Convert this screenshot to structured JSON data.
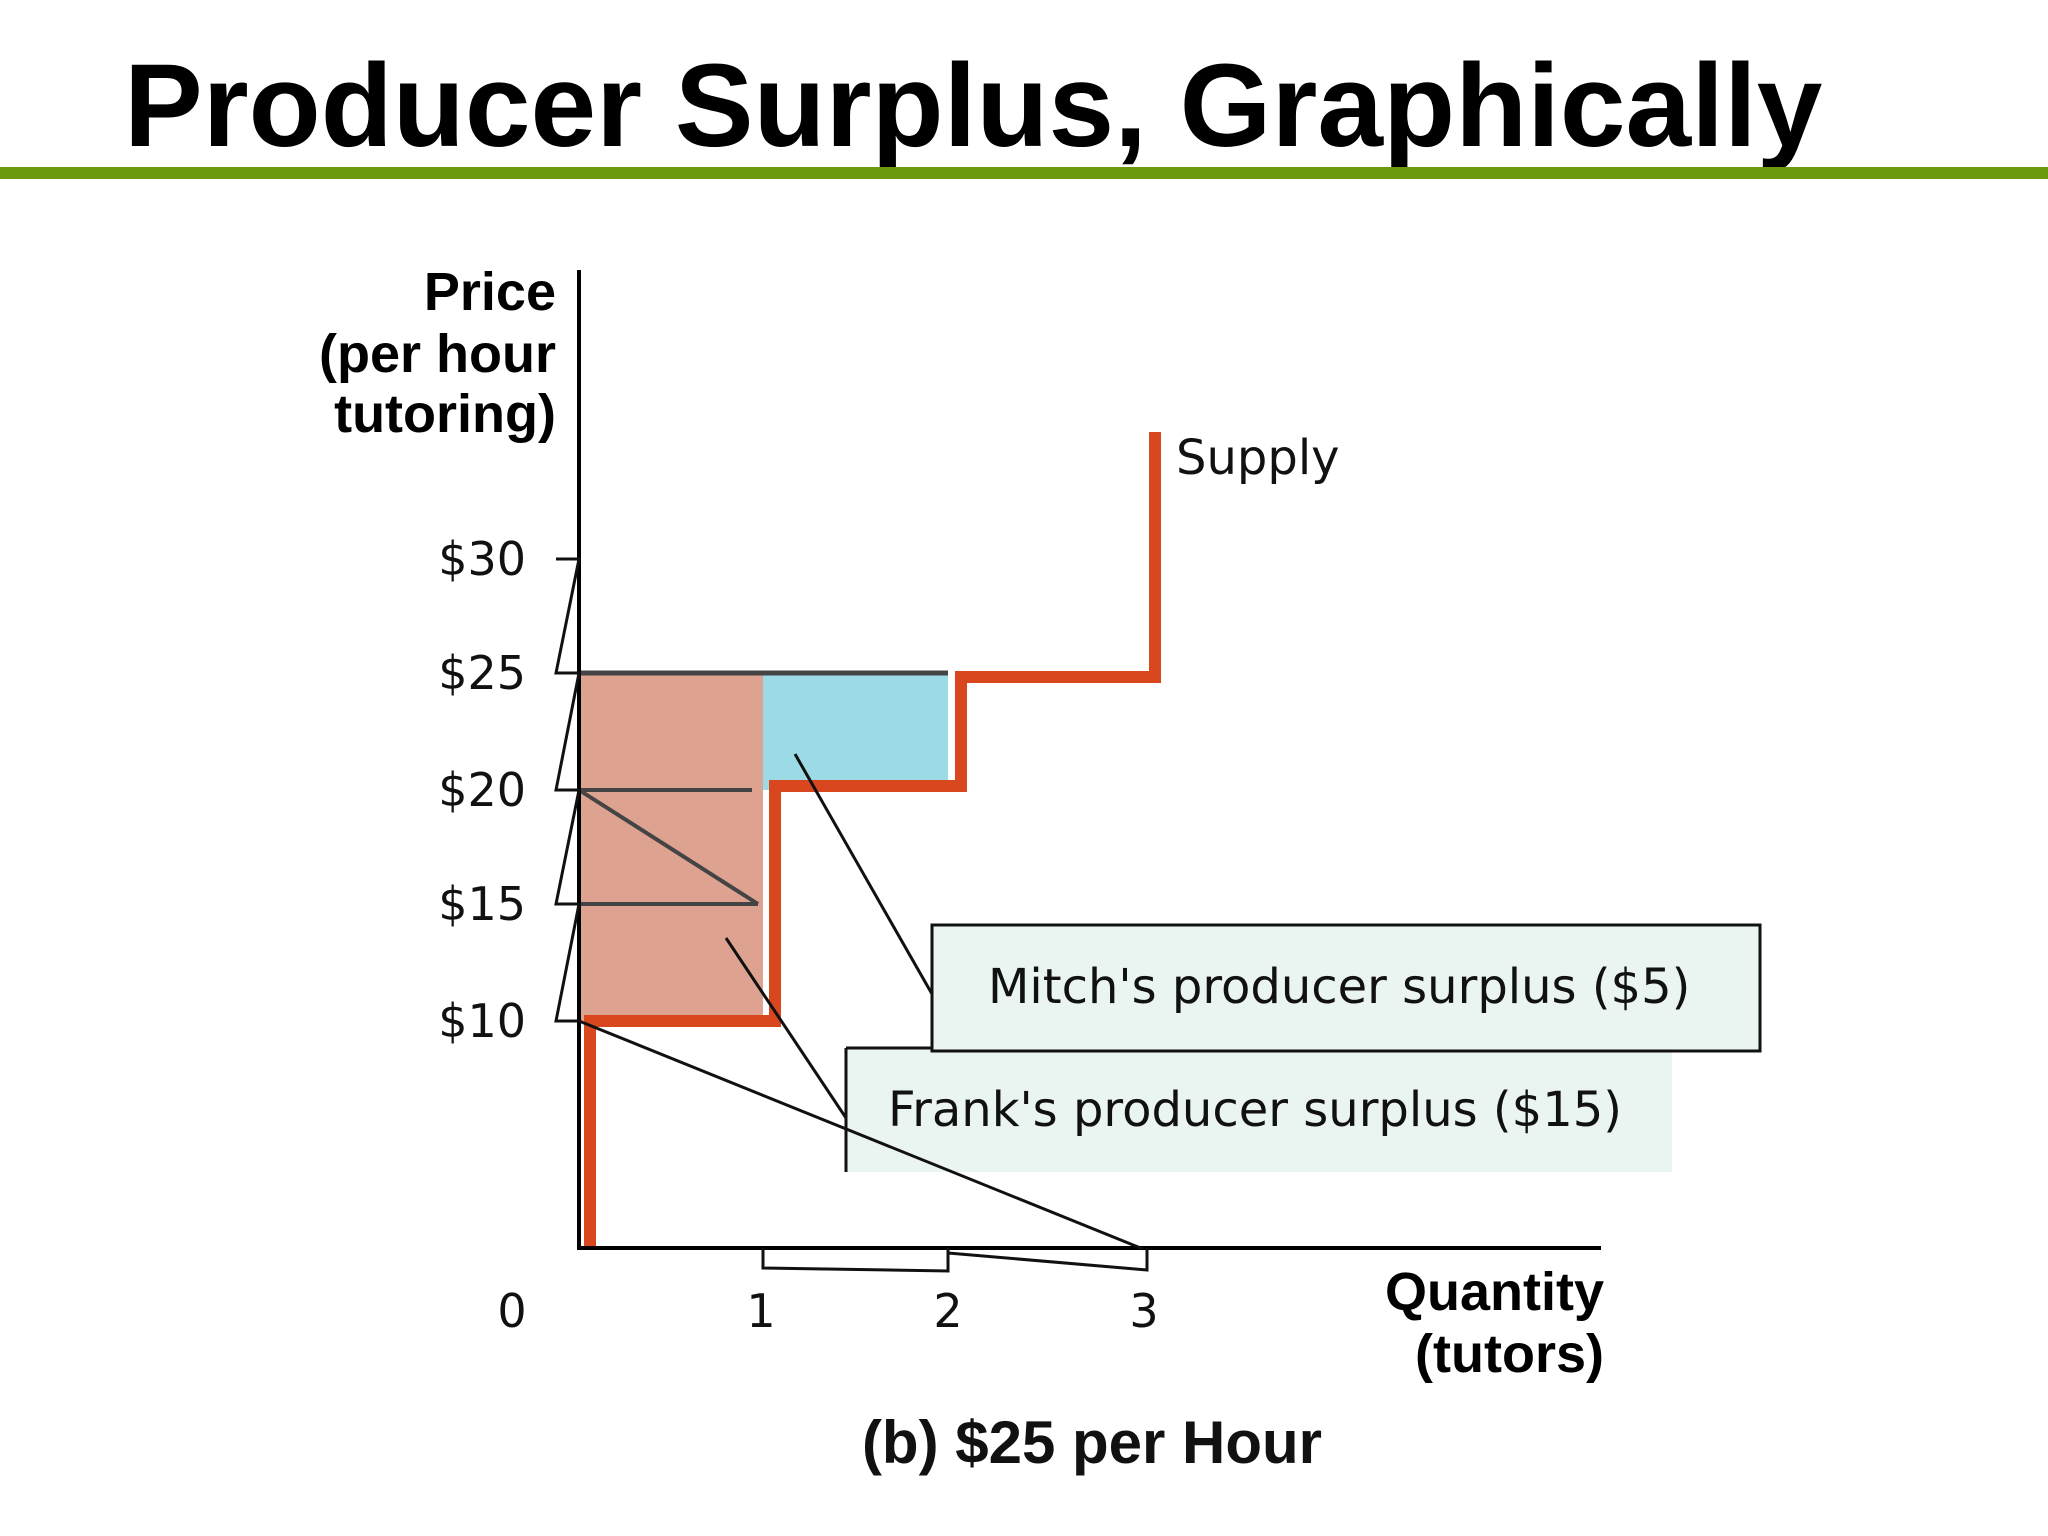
{
  "slide": {
    "title": "Producer Surplus, Graphically",
    "rule_color": "#6b9a0e"
  },
  "chart_data": {
    "type": "line",
    "title": "",
    "caption": "(b) $25 per Hour",
    "ylabel_lines": [
      "Price",
      "(per hour",
      "tutoring)"
    ],
    "xlabel_lines": [
      "Quantity",
      "(tutors)"
    ],
    "x_ticks": [
      "0",
      "1",
      "2",
      "3"
    ],
    "y_ticks": [
      "$10",
      "$15",
      "$20",
      "$25",
      "$30"
    ],
    "y_tick_values": [
      10,
      15,
      20,
      25,
      30
    ],
    "xlim": [
      0,
      4.5
    ],
    "ylim": [
      0,
      35
    ],
    "series": [
      {
        "name": "Supply",
        "step": true,
        "x": [
          0,
          1,
          1,
          2,
          2,
          3,
          3
        ],
        "y": [
          0,
          10,
          20,
          20,
          25,
          25,
          35
        ]
      }
    ],
    "market_price": 25,
    "surplus_areas": [
      {
        "label": "Frank's producer surplus ($15)",
        "x": [
          0,
          1
        ],
        "y": [
          10,
          25
        ],
        "color": "#dea291"
      },
      {
        "label": "Mitch's producer surplus ($5)",
        "x": [
          1,
          2
        ],
        "y": [
          20,
          25
        ],
        "color": "#9cdbe6"
      }
    ],
    "colors": {
      "supply": "#d9471f",
      "axis": "#000000",
      "price_line": "#444444",
      "callout_fill": "#eaf4f0"
    }
  }
}
